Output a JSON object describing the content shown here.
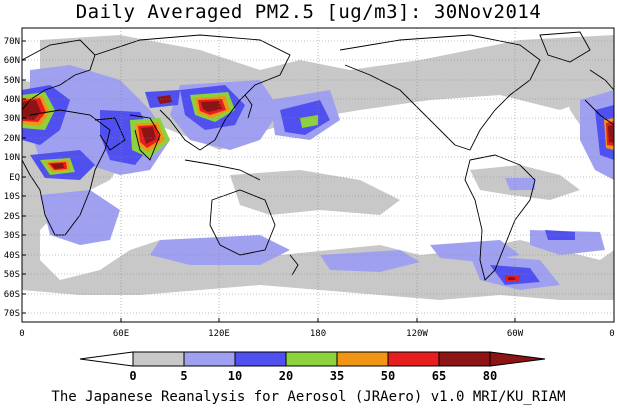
{
  "title": "Daily Averaged PM2.5 [ug/m3]: 30Nov2014",
  "footer": "The Japanese Reanalysis for Aerosol (JRAero) v1.0 MRI/KU_RIAM",
  "lat_labels": [
    "70N",
    "60N",
    "50N",
    "40N",
    "30N",
    "20N",
    "10N",
    "EQ",
    "10S",
    "20S",
    "30S",
    "40S",
    "50S",
    "60S",
    "70S"
  ],
  "lon_labels": [
    "0",
    "60E",
    "120E",
    "180",
    "120W",
    "60W",
    "0"
  ],
  "colorbar": {
    "ticks": [
      "0",
      "5",
      "10",
      "20",
      "35",
      "50",
      "65",
      "80"
    ],
    "colors": [
      "#ffffff",
      "#c8c8c8",
      "#a0a0f0",
      "#5050f0",
      "#8cd23c",
      "#f09614",
      "#e61e1e",
      "#8c1414"
    ]
  },
  "colors": {
    "land": "#ffffff",
    "gray": "#c8c8c8",
    "lightblue": "#a0a0f0",
    "blue": "#5050f0",
    "green": "#8cd23c",
    "orange": "#f09614",
    "red": "#e61e1e",
    "darkred": "#8c1414"
  }
}
